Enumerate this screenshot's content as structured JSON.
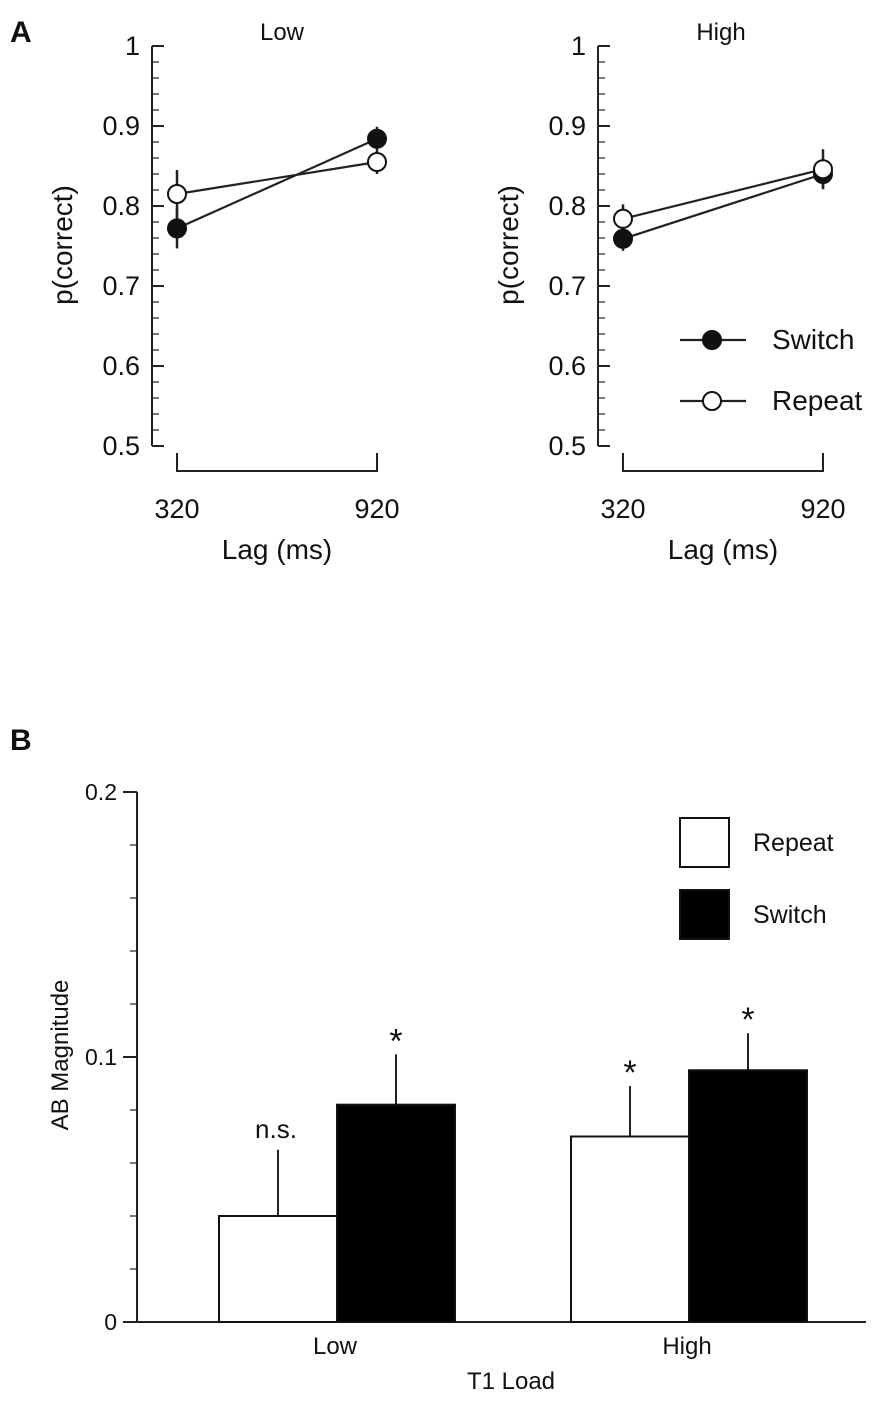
{
  "panel_labels": {
    "a": "A",
    "b": "B"
  },
  "chart_data": [
    {
      "type": "line",
      "title": "Low",
      "xlabel": "Lag (ms)",
      "ylabel": "p(correct)",
      "ylim": [
        0.5,
        1.0
      ],
      "yticks": [
        "0.5",
        "0.6",
        "0.7",
        "0.8",
        "0.9",
        "1"
      ],
      "x": [
        320,
        920
      ],
      "xtick_labels": [
        "320",
        "920"
      ],
      "series": [
        {
          "name": "Switch",
          "marker": "filled",
          "values": [
            0.772,
            0.884
          ],
          "error": [
            0.025,
            0.015
          ]
        },
        {
          "name": "Repeat",
          "marker": "open",
          "values": [
            0.815,
            0.855
          ],
          "error": [
            0.03,
            0.015
          ]
        }
      ]
    },
    {
      "type": "line",
      "title": "High",
      "xlabel": "Lag (ms)",
      "ylabel": "p(correct)",
      "ylim": [
        0.5,
        1.0
      ],
      "yticks": [
        "0.5",
        "0.6",
        "0.7",
        "0.8",
        "0.9",
        "1"
      ],
      "x": [
        320,
        920
      ],
      "xtick_labels": [
        "320",
        "920"
      ],
      "legend_position": "lower-right",
      "series": [
        {
          "name": "Switch",
          "marker": "filled",
          "values": [
            0.759,
            0.84
          ],
          "error": [
            0.015,
            0.018
          ]
        },
        {
          "name": "Repeat",
          "marker": "open",
          "values": [
            0.784,
            0.846
          ],
          "error": [
            0.018,
            0.025
          ]
        }
      ]
    },
    {
      "type": "bar",
      "xlabel": "T1 Load",
      "ylabel": "AB Magnitude",
      "ylim": [
        0,
        0.2
      ],
      "yticks": [
        "0",
        "0.1",
        "0.2"
      ],
      "categories": [
        "Low",
        "High"
      ],
      "legend_position": "top-right",
      "series": [
        {
          "name": "Repeat",
          "color": "#ffffff",
          "values": [
            0.04,
            0.07
          ],
          "error": [
            0.025,
            0.019
          ],
          "annotations": [
            "n.s.",
            "*"
          ]
        },
        {
          "name": "Switch",
          "color": "#000000",
          "values": [
            0.082,
            0.095
          ],
          "error": [
            0.019,
            0.014
          ],
          "annotations": [
            "*",
            "*"
          ]
        }
      ]
    }
  ]
}
